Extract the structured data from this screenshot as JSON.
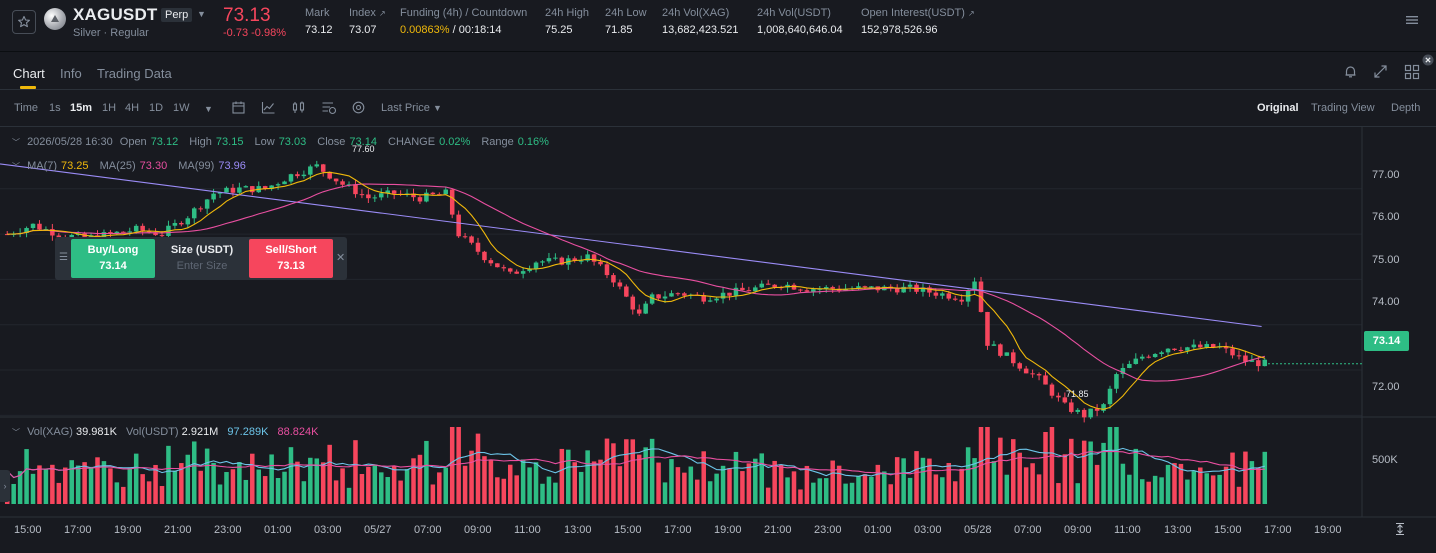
{
  "ticker": {
    "symbol": "XAGUSDT",
    "badge": "Perp",
    "subtitle": "Silver · Regular",
    "last_price": "73.13",
    "change": "-0.73 -0.98%",
    "stats": {
      "mark_label": "Mark",
      "mark_value": "73.12",
      "index_label": "Index",
      "index_value": "73.07",
      "funding_label": "Funding (4h) / Countdown",
      "funding_rate": "0.00863%",
      "countdown": "/ 00:18:14",
      "high_label": "24h High",
      "high_value": "75.25",
      "low_label": "24h Low",
      "low_value": "71.85",
      "vol_xag_label": "24h Vol(XAG)",
      "vol_xag_value": "13,682,423.521",
      "vol_usdt_label": "24h Vol(USDT)",
      "vol_usdt_value": "1,008,640,646.04",
      "oi_label": "Open Interest(USDT)",
      "oi_value": "152,978,526.96"
    },
    "ext_glyph": "↗"
  },
  "tabs": [
    "Chart",
    "Info",
    "Trading Data"
  ],
  "toolbar": {
    "intervals": [
      "Time",
      "1s",
      "15m",
      "1H",
      "4H",
      "1D",
      "1W"
    ],
    "active_interval": "15m",
    "price_type": "Last Price",
    "views": [
      "Original",
      "Trading View",
      "Depth"
    ],
    "active_view": "Original"
  },
  "chart": {
    "ohlc": {
      "date": "2026/05/28 16:30",
      "open_label": "Open",
      "open": "73.12",
      "high_label": "High",
      "high": "73.15",
      "low_label": "Low",
      "low": "73.03",
      "close_label": "Close",
      "close": "73.14",
      "change_label": "CHANGE",
      "change": "0.02%",
      "range_label": "Range",
      "range": "0.16%"
    },
    "ma": {
      "ma7_label": "MA(7)",
      "ma7": "73.25",
      "ma25_label": "MA(25)",
      "ma25": "73.30",
      "ma99_label": "MA(99)",
      "ma99": "73.96"
    },
    "order_panel": {
      "buy_label": "Buy/Long",
      "buy_price": "73.14",
      "size_label": "Size (USDT)",
      "size_placeholder": "Enter Size",
      "sell_label": "Sell/Short",
      "sell_price": "73.13"
    },
    "y_axis": [
      "77.00",
      "76.00",
      "75.00",
      "74.00",
      "73.00",
      "72.00"
    ],
    "current_price": "73.14",
    "high_marker": "77.60",
    "low_marker": "71.85",
    "x_axis": [
      "15:00",
      "17:00",
      "19:00",
      "21:00",
      "23:00",
      "01:00",
      "03:00",
      "05/27",
      "07:00",
      "09:00",
      "11:00",
      "13:00",
      "15:00",
      "17:00",
      "19:00",
      "21:00",
      "23:00",
      "01:00",
      "03:00",
      "05/28",
      "07:00",
      "09:00",
      "11:00",
      "13:00",
      "15:00",
      "17:00",
      "19:00"
    ],
    "volume": {
      "vol_xag_label": "Vol(XAG)",
      "vol_xag": "39.981K",
      "vol_usdt_label": "Vol(USDT)",
      "vol_usdt": "2.921M",
      "ma_a": "97.289K",
      "ma_b": "88.824K",
      "axis_label": "500K"
    },
    "colors": {
      "up": "#2ebd85",
      "down": "#f6465d",
      "ma7": "#f0b90b",
      "ma25": "#e84fa0",
      "ma99": "#9b8cf7",
      "vol_ma_a": "#6cc4e8",
      "vol_ma_b": "#e84fa0"
    }
  },
  "chart_data": {
    "type": "candlestick",
    "interval": "15m",
    "price_range": [
      71.5,
      77.9
    ],
    "volume_axis_tick": "500K",
    "price_path": [
      [
        0,
        76.0
      ],
      [
        4,
        76.2
      ],
      [
        8,
        76.0
      ],
      [
        12,
        75.9
      ],
      [
        16,
        76.0
      ],
      [
        20,
        76.1
      ],
      [
        24,
        76.0
      ],
      [
        28,
        76.4
      ],
      [
        32,
        76.9
      ],
      [
        36,
        77.0
      ],
      [
        40,
        77.0
      ],
      [
        44,
        77.3
      ],
      [
        48,
        77.5
      ],
      [
        52,
        77.1
      ],
      [
        56,
        76.8
      ],
      [
        60,
        76.9
      ],
      [
        64,
        76.8
      ],
      [
        68,
        76.9
      ],
      [
        70,
        76.0
      ],
      [
        74,
        75.5
      ],
      [
        78,
        75.1
      ],
      [
        82,
        75.4
      ],
      [
        86,
        75.4
      ],
      [
        90,
        75.5
      ],
      [
        94,
        75.0
      ],
      [
        98,
        74.2
      ],
      [
        100,
        74.6
      ],
      [
        104,
        74.7
      ],
      [
        108,
        74.6
      ],
      [
        112,
        74.7
      ],
      [
        116,
        74.8
      ],
      [
        120,
        74.9
      ],
      [
        124,
        74.8
      ],
      [
        128,
        74.8
      ],
      [
        132,
        74.8
      ],
      [
        136,
        74.8
      ],
      [
        140,
        74.8
      ],
      [
        144,
        74.7
      ],
      [
        148,
        74.6
      ],
      [
        150,
        75.0
      ],
      [
        152,
        73.6
      ],
      [
        156,
        73.2
      ],
      [
        160,
        72.8
      ],
      [
        164,
        72.2
      ],
      [
        167,
        72.0
      ],
      [
        170,
        72.2
      ],
      [
        172,
        72.9
      ],
      [
        176,
        73.3
      ],
      [
        180,
        73.5
      ],
      [
        184,
        73.5
      ],
      [
        188,
        73.5
      ],
      [
        192,
        73.2
      ],
      [
        195,
        73.14
      ]
    ]
  }
}
